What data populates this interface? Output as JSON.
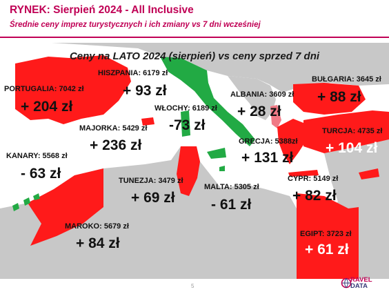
{
  "header": {
    "title": "RYNEK: Sierpień 2024 - All Inclusive",
    "subtitle": "Średnie ceny imprez turystycznych i ich zmiany vs 7 dni wcześniej"
  },
  "map": {
    "heading": "Ceny na LATO 2024 (sierpień) vs ceny sprzed 7 dni",
    "legend_colors": {
      "increase": "#ff1a1a",
      "decrease": "#22aa44",
      "land": "#c8c8c8",
      "sea": "#ffffff"
    },
    "destinations": [
      {
        "id": "portugalia",
        "label": "PORTUGALIA: 7042 zł",
        "change": "+ 204 zł",
        "trend": "up"
      },
      {
        "id": "hiszpania",
        "label": "HISZPANIA: 6179 zł",
        "change": "+ 93 zł",
        "trend": "up"
      },
      {
        "id": "wlochy",
        "label": "WŁOCHY: 6189 zł",
        "change": "-73 zł",
        "trend": "down"
      },
      {
        "id": "albania",
        "label": "ALBANIA: 3609 zł",
        "change": "+ 28 zł",
        "trend": "up"
      },
      {
        "id": "bulgaria",
        "label": "BUŁGARIA: 3645 zł",
        "change": "+ 88 zł",
        "trend": "up"
      },
      {
        "id": "majorka",
        "label": "MAJORKA: 5429 zł",
        "change": "+ 236 zł",
        "trend": "up"
      },
      {
        "id": "turcja",
        "label": "TURCJA: 4735 zł",
        "change": "+ 104 zł",
        "trend": "up"
      },
      {
        "id": "grecja",
        "label": "GRECJA: 5388zł",
        "change": "+ 131 zł",
        "trend": "up"
      },
      {
        "id": "kanary",
        "label": "KANARY: 5568 zł",
        "change": "- 63 zł",
        "trend": "down"
      },
      {
        "id": "tunezja",
        "label": "TUNEZJA: 3479 zł",
        "change": "+ 69 zł",
        "trend": "up"
      },
      {
        "id": "malta",
        "label": "MALTA: 5305 zł",
        "change": "- 61 zł",
        "trend": "down"
      },
      {
        "id": "cypr",
        "label": "CYPR: 5149 zł",
        "change": "+ 82 zł",
        "trend": "up"
      },
      {
        "id": "maroko",
        "label": "MAROKO: 5679 zł",
        "change": "+ 84 zł",
        "trend": "up"
      },
      {
        "id": "egipt",
        "label": "EGIPT: 3723 zł",
        "change": "+ 61 zł",
        "trend": "up"
      }
    ]
  },
  "footer": {
    "page_number": "5",
    "logo_line1": "RAVEL",
    "logo_line2": "DATA"
  }
}
